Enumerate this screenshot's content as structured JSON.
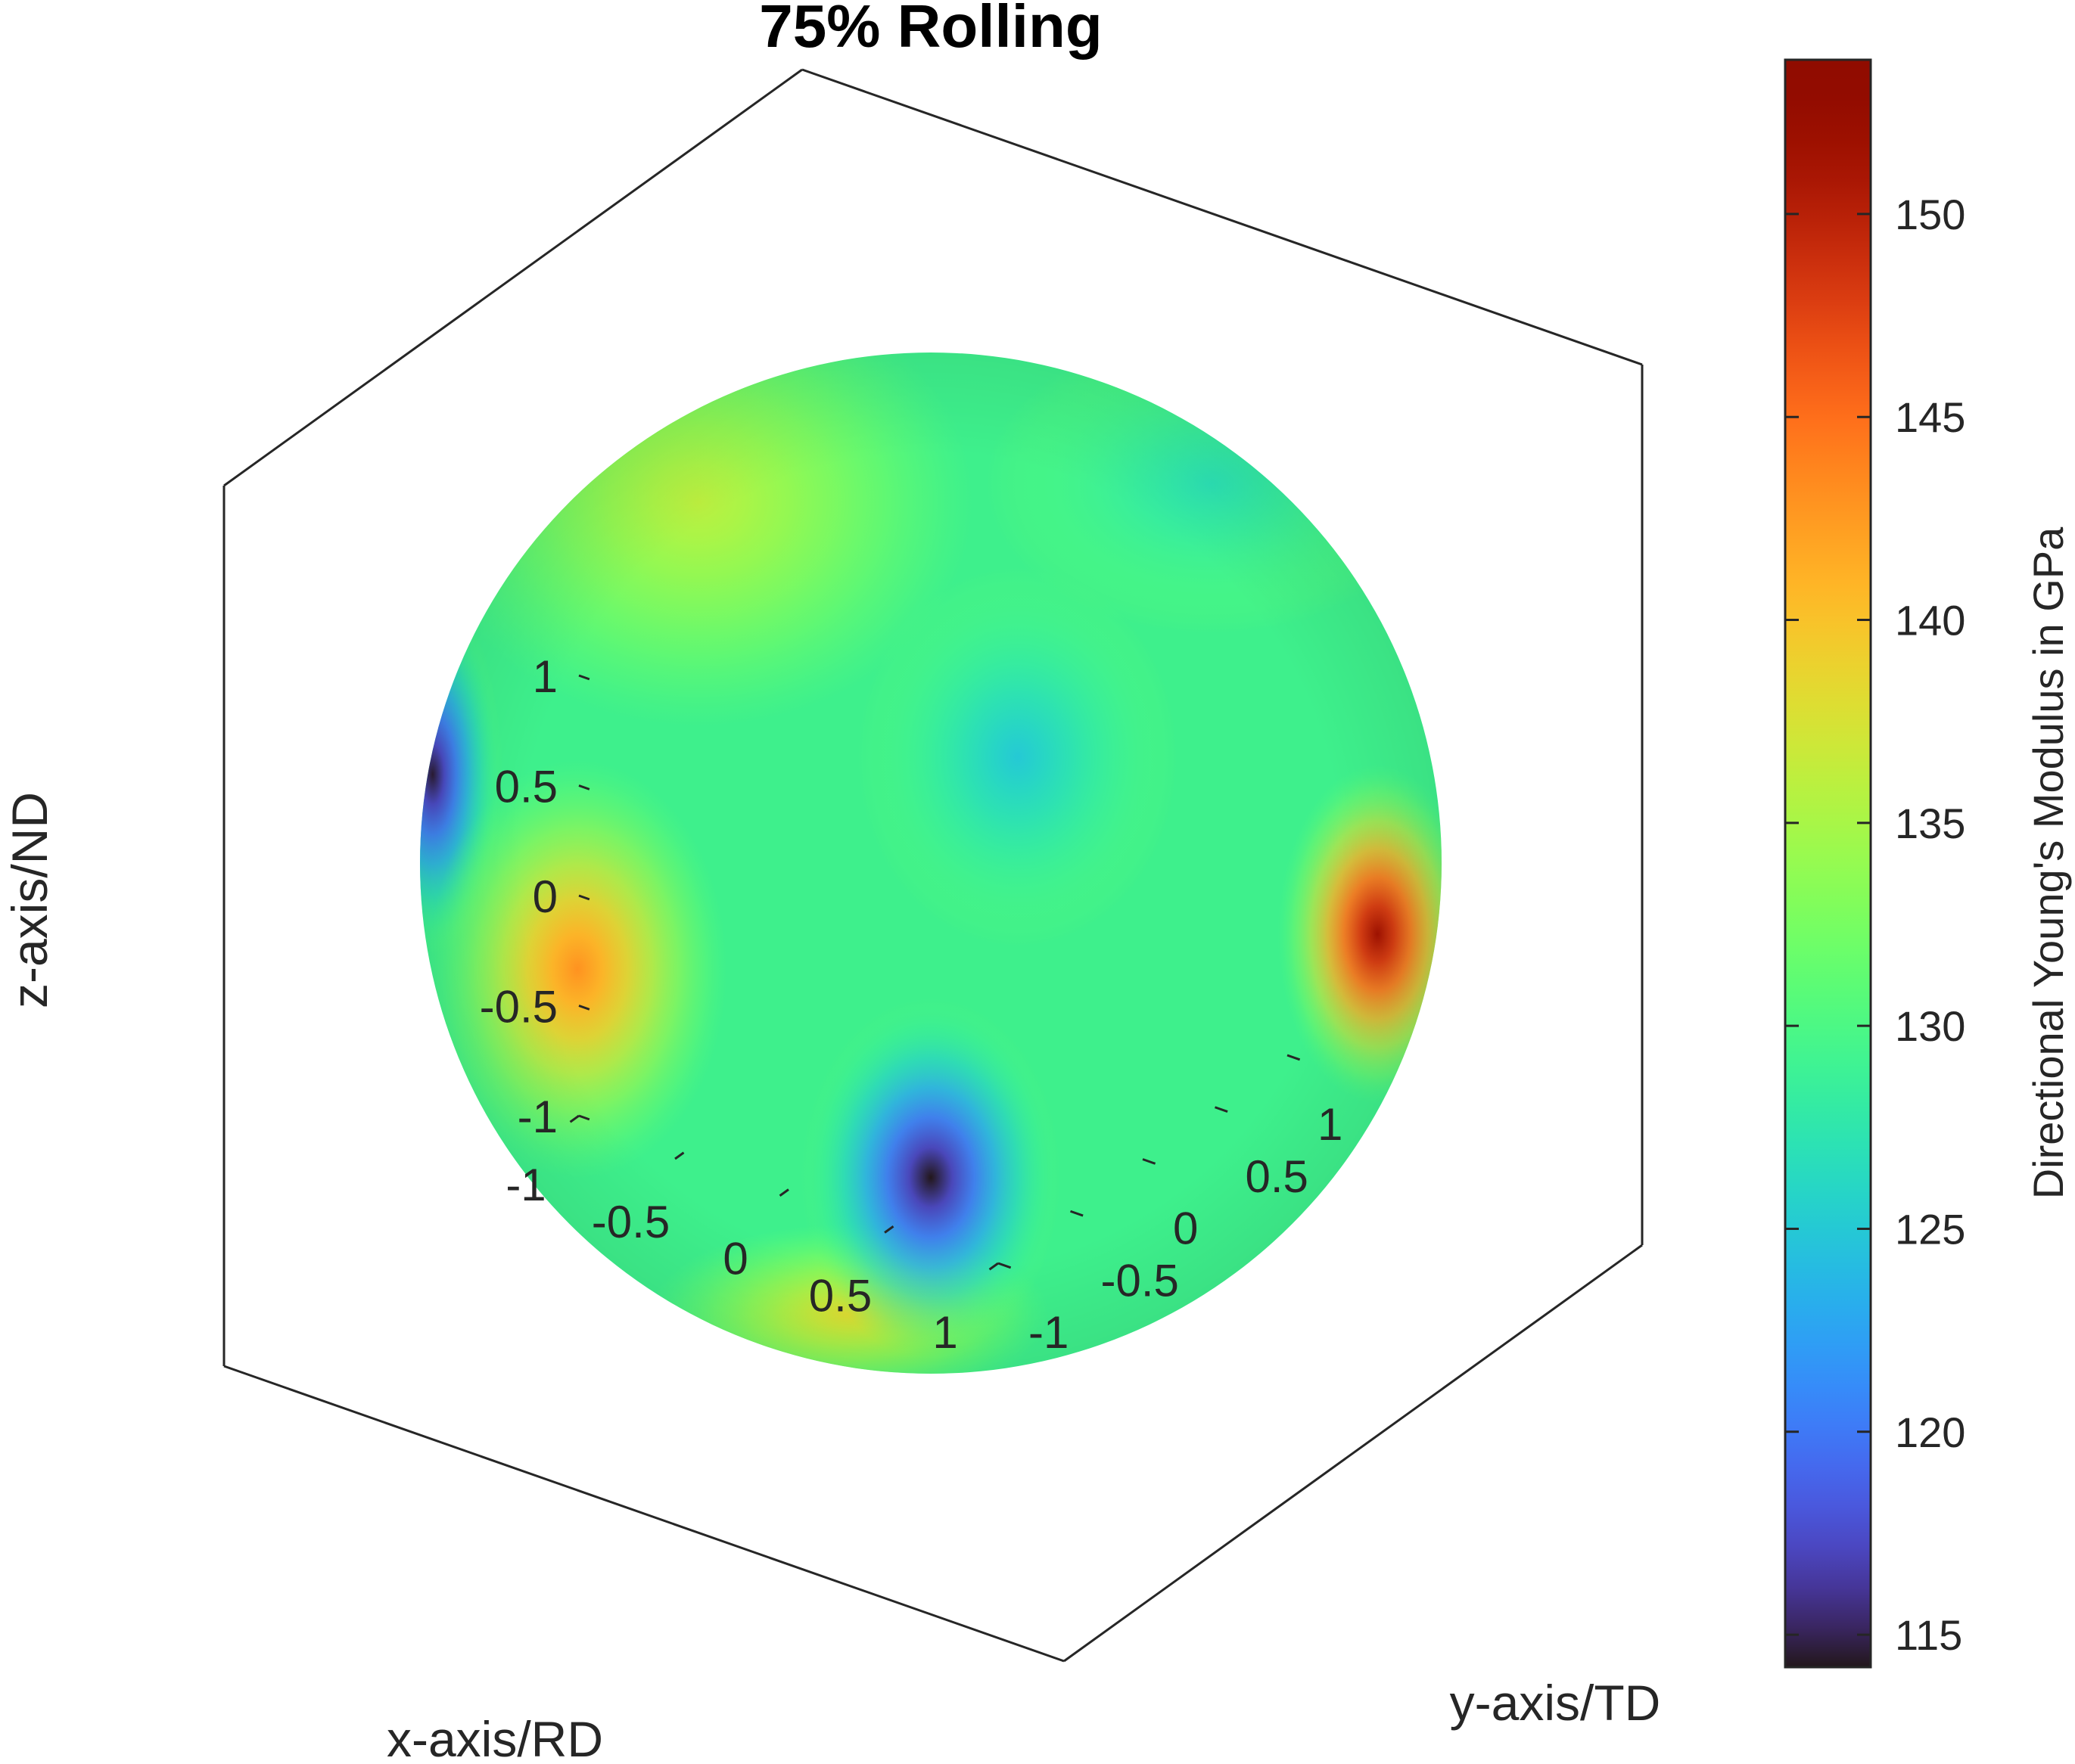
{
  "chart_data": {
    "type": "surface",
    "title": "75% Rolling",
    "xlabel": "x-axis/RD",
    "ylabel": "y-axis/TD",
    "zlabel": "z-axis/ND",
    "xlim": [
      -1,
      1
    ],
    "ylim": [
      -1,
      1
    ],
    "zlim": [
      -1,
      1
    ],
    "x_ticks": [
      "-1",
      "-0.5",
      "0",
      "0.5",
      "1"
    ],
    "y_ticks": [
      "-1",
      "-0.5",
      "0",
      "0.5",
      "1"
    ],
    "z_ticks": [
      "-1",
      "-0.5",
      "0",
      "0.5",
      "1"
    ],
    "grid": true,
    "colormap": "turbo",
    "colorbar": {
      "label": "Directional Young's Modulus in GPa",
      "range": [
        114.2,
        153.8
      ],
      "ticks": [
        "115",
        "120",
        "125",
        "130",
        "135",
        "140",
        "145",
        "150"
      ],
      "tick_values": [
        115,
        120,
        125,
        130,
        135,
        140,
        145,
        150
      ]
    },
    "surface": {
      "shape": "unit sphere colored by modulus",
      "min_value": 114.2,
      "max_value": 153.8,
      "hotspots": [
        {
          "name": "low lower-center",
          "azimuth_deg": 0,
          "elevation_deg": -38,
          "value": 114.2
        },
        {
          "name": "low left edge",
          "azimuth_deg": -82,
          "elevation_deg": 10,
          "value": 114.5
        },
        {
          "name": "high right",
          "azimuth_deg": 62,
          "elevation_deg": -8,
          "value": 151.5
        },
        {
          "name": "high left",
          "azimuth_deg": -45,
          "elevation_deg": -12,
          "value": 143
        }
      ]
    }
  }
}
